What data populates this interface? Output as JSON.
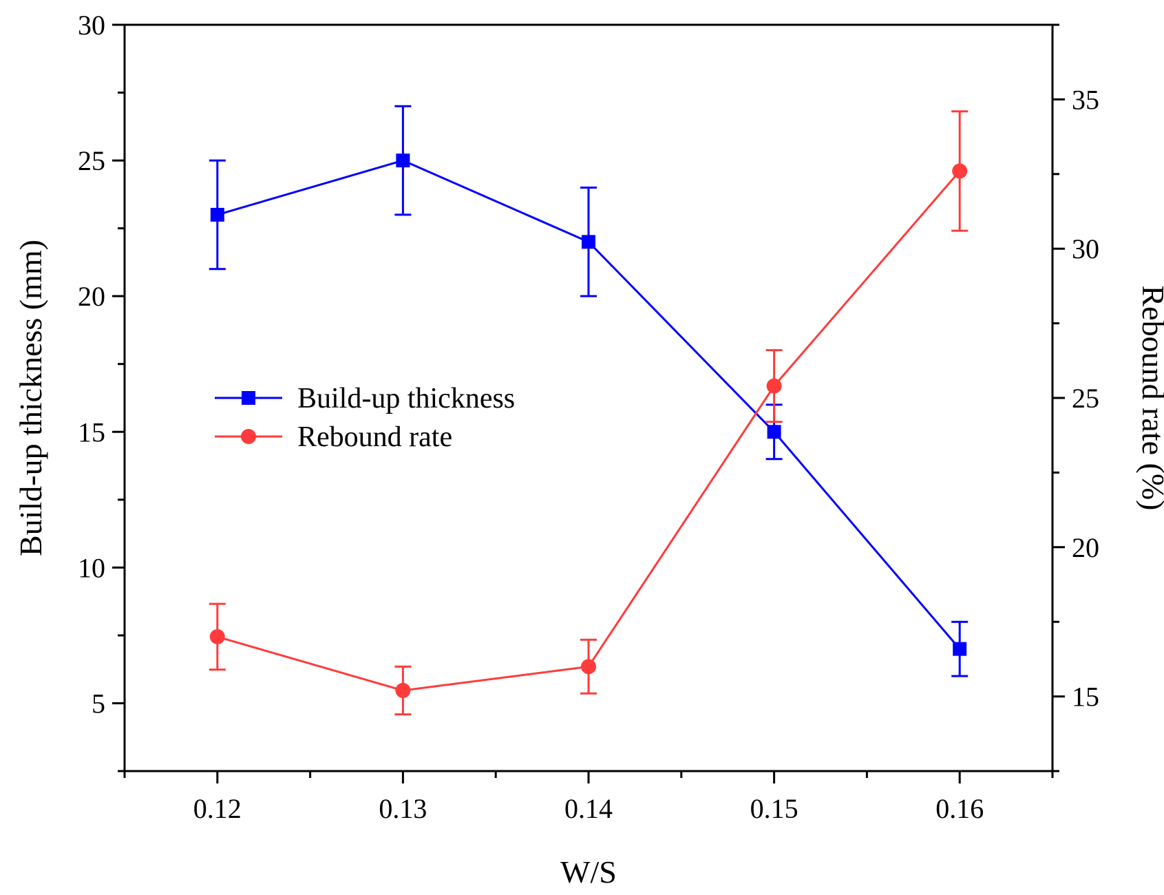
{
  "chart_data": {
    "type": "line",
    "xlabel": "W/S",
    "ylabel_left": "Build-up thickness (mm)",
    "ylabel_right": "Rebound rate (%)",
    "x": [
      0.12,
      0.13,
      0.14,
      0.15,
      0.16
    ],
    "x_ticks": [
      "0.12",
      "0.13",
      "0.14",
      "0.15",
      "0.16"
    ],
    "xlim": [
      0.115,
      0.165
    ],
    "ylim_left": [
      2.5,
      30
    ],
    "ylim_right": [
      12.5,
      37.5
    ],
    "y_ticks_left": [
      "5",
      "10",
      "15",
      "20",
      "25",
      "30"
    ],
    "y_ticks_right": [
      "15",
      "20",
      "25",
      "30",
      "35"
    ],
    "legend_position": "center-left",
    "series": [
      {
        "name": "Build-up thickness",
        "axis": "left",
        "color": "#0000ff",
        "marker": "square",
        "values": [
          23,
          25,
          22,
          15,
          7
        ],
        "error": [
          2,
          2,
          2,
          1,
          1
        ]
      },
      {
        "name": "Rebound rate",
        "axis": "right",
        "color": "#ff3b3b",
        "marker": "circle",
        "values": [
          17.0,
          15.2,
          16.0,
          25.4,
          32.6
        ],
        "error": [
          1.1,
          0.8,
          0.9,
          1.2,
          2.0
        ]
      }
    ]
  }
}
